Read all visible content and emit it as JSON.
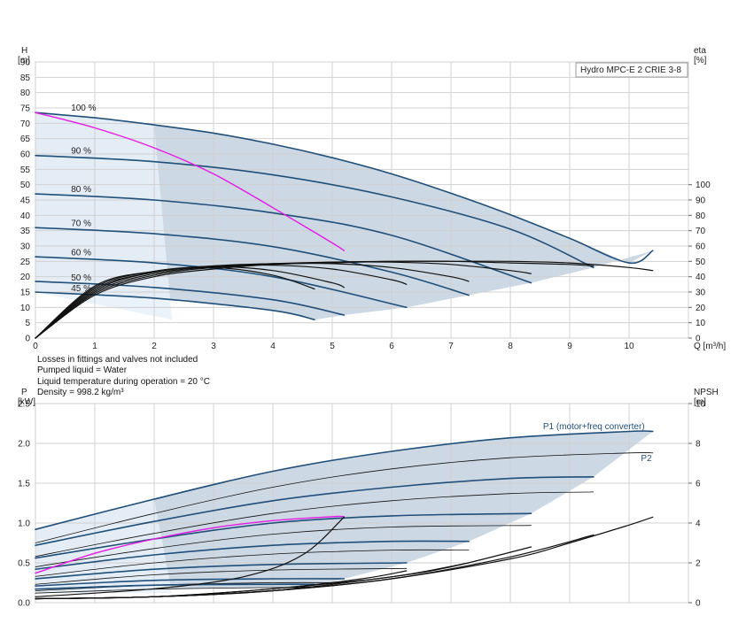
{
  "chart_data": [
    {
      "id": "qh",
      "type": "line",
      "title": "Hydro MPC-E 2 CRIE 3-8",
      "xlabel": "Q [m³/h]",
      "ylabel_top": "H",
      "ylabel_unit": "[m]",
      "y2label_top": "eta",
      "y2label_unit": "[%]",
      "xlim": [
        0,
        11
      ],
      "ylim": [
        0,
        90
      ],
      "y2lim": [
        0,
        180
      ],
      "x_ticks": [
        "0",
        "1",
        "2",
        "3",
        "4",
        "5",
        "6",
        "7",
        "8",
        "9",
        "10"
      ],
      "y_ticks": [
        "0",
        "5",
        "10",
        "15",
        "20",
        "25",
        "30",
        "35",
        "40",
        "45",
        "50",
        "55",
        "60",
        "65",
        "70",
        "75",
        "80",
        "85",
        "90"
      ],
      "y2_ticks": [
        "0",
        "10",
        "20",
        "30",
        "40",
        "50",
        "60",
        "70",
        "80",
        "90",
        "100"
      ],
      "speed_labels": [
        {
          "text": "100 %",
          "x": 0.6,
          "y": 74.2
        },
        {
          "text": "90 %",
          "x": 0.6,
          "y": 60.2
        },
        {
          "text": "80 %",
          "x": 0.6,
          "y": 47.6
        },
        {
          "text": "70 %",
          "x": 0.6,
          "y": 36.5
        },
        {
          "text": "60 %",
          "x": 0.6,
          "y": 26.9
        },
        {
          "text": "50 %",
          "x": 0.6,
          "y": 18.8
        },
        {
          "text": "45 %",
          "x": 0.6,
          "y": 15.3
        }
      ],
      "series": [
        {
          "name": "H 100 %",
          "x": [
            0,
            1,
            2,
            3,
            4,
            5,
            6,
            7,
            8,
            9,
            10,
            10.4
          ],
          "y": [
            73.5,
            71.8,
            69.5,
            66.8,
            63.2,
            58.8,
            53.5,
            47.2,
            40.2,
            32.5,
            24.5,
            28.5
          ]
        },
        {
          "name": "H 90 %",
          "x": [
            0,
            2,
            4,
            6,
            8,
            9.4
          ],
          "y": [
            59.5,
            57.5,
            53.2,
            46.0,
            35.5,
            23.0
          ]
        },
        {
          "name": "H 80 %",
          "x": [
            0,
            2,
            4,
            6,
            8.35
          ],
          "y": [
            47.0,
            45.0,
            40.8,
            33.5,
            18.0
          ]
        },
        {
          "name": "H 70 %",
          "x": [
            0,
            2,
            4,
            6,
            7.3
          ],
          "y": [
            36.0,
            34.0,
            29.8,
            21.5,
            14.0
          ]
        },
        {
          "name": "H 60 %",
          "x": [
            0,
            2,
            4,
            6.25
          ],
          "y": [
            26.5,
            24.5,
            20.0,
            10.0
          ]
        },
        {
          "name": "H 50 %",
          "x": [
            0,
            2,
            4,
            5.2
          ],
          "y": [
            18.5,
            16.5,
            12.5,
            7.5
          ]
        },
        {
          "name": "H 45 %",
          "x": [
            0,
            2,
            4,
            4.7
          ],
          "y": [
            15.0,
            13.0,
            9.0,
            6.0
          ]
        },
        {
          "name": "Best efficiency line",
          "x": [
            0,
            1,
            2,
            3,
            4,
            5,
            5.2
          ],
          "y": [
            73.5,
            68.5,
            62.0,
            53.5,
            42.5,
            31.0,
            28.5
          ]
        },
        {
          "name": "eta 100 %",
          "axis": "y2",
          "x": [
            0,
            1,
            2,
            3,
            4,
            5,
            6,
            7,
            8,
            9,
            10,
            10.4
          ],
          "y": [
            0,
            28,
            40,
            45,
            48,
            49,
            50,
            50,
            50,
            49,
            46,
            44
          ]
        },
        {
          "name": "eta 90 %",
          "axis": "y2",
          "x": [
            0,
            1,
            2,
            3,
            4,
            5,
            6,
            7,
            8,
            9,
            9.4
          ],
          "y": [
            0,
            29,
            41,
            46,
            48,
            49.5,
            50,
            50,
            49,
            48,
            47
          ]
        },
        {
          "name": "eta 80 %",
          "axis": "y2",
          "x": [
            0,
            1,
            2,
            3,
            4,
            5,
            6,
            7,
            8,
            8.35
          ],
          "y": [
            0,
            30,
            42,
            46.5,
            48.5,
            49.5,
            49.5,
            48,
            44,
            42
          ]
        },
        {
          "name": "eta 70 %",
          "axis": "y2",
          "x": [
            0,
            1,
            2,
            3,
            4,
            5,
            6,
            7,
            7.3
          ],
          "y": [
            0,
            31,
            43,
            47,
            48.5,
            48.5,
            46,
            40,
            37
          ]
        },
        {
          "name": "eta 60 %",
          "axis": "y2",
          "x": [
            0,
            1,
            2,
            3,
            4,
            5,
            6,
            6.25
          ],
          "y": [
            0,
            32,
            43,
            47,
            47.5,
            45,
            38,
            35
          ]
        },
        {
          "name": "eta 50 %",
          "axis": "y2",
          "x": [
            0,
            1,
            2,
            3,
            4,
            5,
            5.2
          ],
          "y": [
            0,
            33,
            43.5,
            46.5,
            44,
            36,
            33
          ]
        },
        {
          "name": "eta 45 %",
          "axis": "y2",
          "x": [
            0,
            1,
            2,
            3,
            4,
            4.7
          ],
          "y": [
            0,
            34,
            43.5,
            46,
            41,
            32
          ]
        }
      ]
    },
    {
      "id": "qp",
      "type": "line",
      "ylabel_top": "P",
      "ylabel_unit": "[kW]",
      "y2label_top": "NPSH",
      "y2label_unit": "[m]",
      "xlim": [
        0,
        11
      ],
      "ylim": [
        0,
        2.5
      ],
      "y2lim": [
        0,
        10
      ],
      "y_ticks": [
        "0.0",
        "0.5",
        "1.0",
        "1.5",
        "2.0",
        "2.5"
      ],
      "y2_ticks": [
        "0",
        "2",
        "4",
        "6",
        "8",
        "10"
      ],
      "annotations": [
        {
          "text": "P1 (motor+freq converter)",
          "x": 8.55,
          "y": 2.18
        },
        {
          "text": "P2",
          "x": 10.2,
          "y": 1.78
        }
      ],
      "series": [
        {
          "name": "P1 100 %",
          "x": [
            0,
            2,
            4,
            6,
            8,
            10,
            10.4
          ],
          "y": [
            0.92,
            1.3,
            1.65,
            1.9,
            2.07,
            2.15,
            2.15
          ]
        },
        {
          "name": "P2 100 %",
          "x": [
            0,
            2,
            4,
            6,
            8,
            10,
            10.4
          ],
          "y": [
            0.75,
            1.12,
            1.45,
            1.68,
            1.82,
            1.88,
            1.88
          ]
        },
        {
          "name": "P1 90 %",
          "x": [
            0,
            2,
            4,
            6,
            8,
            9.4
          ],
          "y": [
            0.72,
            1.02,
            1.28,
            1.45,
            1.56,
            1.58
          ]
        },
        {
          "name": "P2 90 %",
          "x": [
            0,
            2,
            4,
            6,
            8,
            9.4
          ],
          "y": [
            0.58,
            0.87,
            1.12,
            1.28,
            1.37,
            1.39
          ]
        },
        {
          "name": "P1 80 %",
          "x": [
            0,
            2,
            4,
            6,
            8.35
          ],
          "y": [
            0.56,
            0.8,
            1.0,
            1.09,
            1.12
          ]
        },
        {
          "name": "P2 80 %",
          "x": [
            0,
            2,
            4,
            6,
            8.35
          ],
          "y": [
            0.45,
            0.68,
            0.86,
            0.95,
            0.97
          ]
        },
        {
          "name": "P1 70 %",
          "x": [
            0,
            2,
            4,
            6,
            7.3
          ],
          "y": [
            0.42,
            0.6,
            0.72,
            0.77,
            0.77
          ]
        },
        {
          "name": "P2 70 %",
          "x": [
            0,
            2,
            4,
            6,
            7.3
          ],
          "y": [
            0.33,
            0.5,
            0.61,
            0.66,
            0.66
          ]
        },
        {
          "name": "P1 60 %",
          "x": [
            0,
            2,
            4,
            6.25
          ],
          "y": [
            0.3,
            0.42,
            0.48,
            0.5
          ]
        },
        {
          "name": "P2 60 %",
          "x": [
            0,
            2,
            4,
            6.25
          ],
          "y": [
            0.23,
            0.35,
            0.41,
            0.43
          ]
        },
        {
          "name": "P1 50 %",
          "x": [
            0,
            2,
            4,
            5.2
          ],
          "y": [
            0.21,
            0.28,
            0.3,
            0.3
          ]
        },
        {
          "name": "P2 50 %",
          "x": [
            0,
            2,
            4,
            5.2
          ],
          "y": [
            0.15,
            0.22,
            0.25,
            0.25
          ]
        },
        {
          "name": "P1 45 %",
          "x": [
            0,
            2,
            4,
            4.7
          ],
          "y": [
            0.17,
            0.22,
            0.23,
            0.23
          ]
        },
        {
          "name": "P2 45 %",
          "x": [
            0,
            2,
            4,
            4.7
          ],
          "y": [
            0.12,
            0.17,
            0.19,
            0.19
          ]
        },
        {
          "name": "Best efficiency line",
          "x": [
            0,
            1,
            2,
            3,
            4,
            5,
            5.2
          ],
          "y": [
            0.37,
            0.62,
            0.8,
            0.94,
            1.03,
            1.08,
            1.08
          ]
        },
        {
          "name": "NPSH 100 %",
          "axis": "y2",
          "x": [
            0,
            2,
            4,
            6,
            8,
            9,
            10,
            10.4
          ],
          "y": [
            0.2,
            0.3,
            0.6,
            1.2,
            2.2,
            3.0,
            3.9,
            4.3
          ]
        },
        {
          "name": "NPSH 90 %",
          "axis": "y2",
          "x": [
            0,
            2,
            4,
            6,
            8,
            9.4
          ],
          "y": [
            0.2,
            0.3,
            0.6,
            1.2,
            2.3,
            3.4
          ]
        },
        {
          "name": "NPSH 80 %",
          "axis": "y2",
          "x": [
            0,
            2,
            4,
            6,
            7,
            8.35
          ],
          "y": [
            0.2,
            0.3,
            0.6,
            1.3,
            1.8,
            2.8
          ]
        },
        {
          "name": "NPSH 70 %",
          "axis": "y2",
          "x": [
            0,
            2,
            4,
            6,
            7.3
          ],
          "y": [
            0.2,
            0.3,
            0.7,
            1.3,
            2.0
          ]
        },
        {
          "name": "NPSH 60 %",
          "axis": "y2",
          "x": [
            0,
            2,
            4,
            5.5,
            6.25
          ],
          "y": [
            0.2,
            0.3,
            0.7,
            1.2,
            1.6
          ]
        },
        {
          "name": "NPSH 50 %",
          "axis": "y2",
          "x": [
            0,
            2,
            3.5,
            4.5,
            5.2
          ],
          "y": [
            0.3,
            0.7,
            1.3,
            2.4,
            4.3
          ]
        },
        {
          "name": "NPSH 45 %",
          "axis": "y2",
          "x": [
            0,
            2,
            4,
            4.7
          ],
          "y": [
            0.2,
            0.3,
            0.6,
            0.9
          ]
        }
      ]
    }
  ],
  "notes": [
    "Losses in fittings and valves not included",
    "Pumped liquid = Water",
    "Liquid temperature during operation = 20 °C",
    "Density = 998.2 kg/m³"
  ],
  "colors": {
    "curve": "#1f4e79",
    "thin": "#111111",
    "highlight": "#e619e6",
    "area": "#c9d6e3",
    "area_light": "#e8f1f9",
    "grid": "#d0d0d0"
  }
}
